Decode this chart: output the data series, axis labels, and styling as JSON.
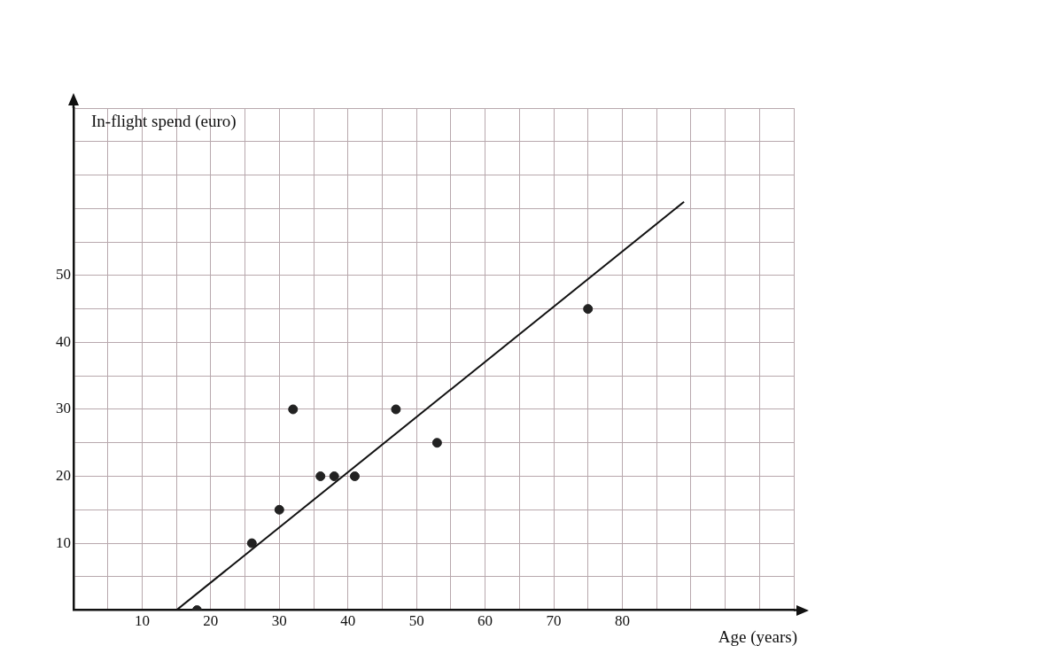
{
  "chart_data": {
    "type": "scatter",
    "xlabel": "Age (years)",
    "ylabel": "In-flight spend (euro)",
    "x": [
      18,
      26,
      30,
      32,
      36,
      38,
      41,
      47,
      53,
      75
    ],
    "series": [
      {
        "color": "#222222",
        "marker": "circle",
        "values": [
          0,
          10,
          15,
          30,
          20,
          20,
          20,
          30,
          25,
          45
        ]
      },
      {
        "type": "line",
        "color": "#111111",
        "marker": "none",
        "x": [
          15,
          89
        ],
        "values": [
          0,
          61
        ]
      }
    ],
    "xlim": [
      0,
      105
    ],
    "ylim": [
      0,
      75
    ],
    "xticks": [
      {
        "value": 0,
        "label": null
      },
      {
        "value": 5,
        "label": null
      },
      10,
      {
        "value": 15,
        "label": null
      },
      20,
      {
        "value": 25,
        "label": null
      },
      30,
      {
        "value": 35,
        "label": null
      },
      40,
      {
        "value": 45,
        "label": null
      },
      50,
      {
        "value": 55,
        "label": null
      },
      60,
      {
        "value": 65,
        "label": null
      },
      70,
      {
        "value": 75,
        "label": null
      },
      80,
      {
        "value": 85,
        "label": null
      },
      {
        "value": 90,
        "label": null
      },
      {
        "value": 95,
        "label": null
      },
      {
        "value": 100,
        "label": null
      },
      {
        "value": 105,
        "label": null
      }
    ],
    "yticks": [
      {
        "value": 0,
        "label": null
      },
      {
        "value": 5,
        "label": null
      },
      10,
      {
        "value": 15,
        "label": null
      },
      20,
      {
        "value": 25,
        "label": null
      },
      30,
      {
        "value": 35,
        "label": null
      },
      40,
      {
        "value": 45,
        "label": null
      },
      50,
      {
        "value": 55,
        "label": null
      },
      {
        "value": 60,
        "label": null
      },
      {
        "value": 65,
        "label": null
      },
      {
        "value": 70,
        "label": null
      },
      {
        "value": 75,
        "label": null
      }
    ],
    "grid": true,
    "legend": false,
    "line_style": "solid"
  }
}
